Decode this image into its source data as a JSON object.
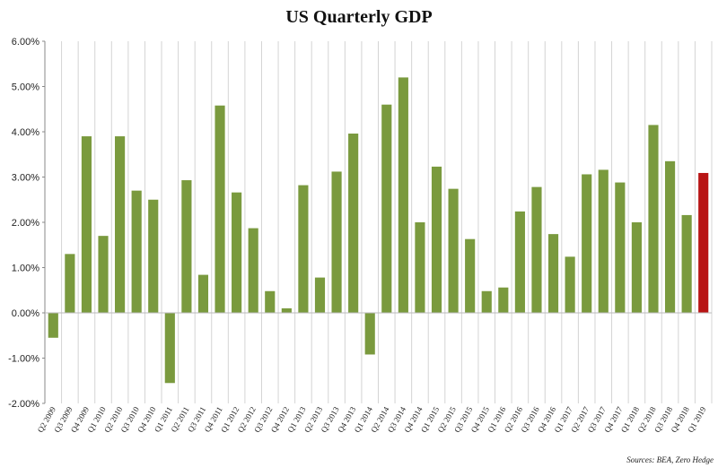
{
  "chart_data": {
    "type": "bar",
    "title": "US Quarterly GDP",
    "source": "Sources: BEA, Zero Hedge",
    "ylim": [
      -2,
      6
    ],
    "yticks": [
      -2,
      -1,
      0,
      1,
      2,
      3,
      4,
      5,
      6
    ],
    "ytick_labels": [
      "-2.00%",
      "-1.00%",
      "0.00%",
      "1.00%",
      "2.00%",
      "3.00%",
      "4.00%",
      "5.00%",
      "6.00%"
    ],
    "grid": "vertical",
    "categories": [
      "Q2 2009",
      "Q3 2009",
      "Q4 2009",
      "Q1 2010",
      "Q2 2010",
      "Q3 2010",
      "Q4 2010",
      "Q1 2011",
      "Q2 2011",
      "Q3 2011",
      "Q4 2011",
      "Q1 2012",
      "Q2 2012",
      "Q3 2012",
      "Q4 2012",
      "Q1 2013",
      "Q2 2013",
      "Q3 2013",
      "Q4 2013",
      "Q1 2014",
      "Q2 2014",
      "Q3 2014",
      "Q4 2014",
      "Q1 2015",
      "Q2 2015",
      "Q3 2015",
      "Q4 2015",
      "Q1 2016",
      "Q2 2016",
      "Q3 2016",
      "Q4 2016",
      "Q1 2017",
      "Q2 2017",
      "Q3 2017",
      "Q4 2017",
      "Q1 2018",
      "Q2 2018",
      "Q3 2018",
      "Q4 2018",
      "Q1 2019"
    ],
    "values": [
      -0.55,
      1.3,
      3.9,
      1.7,
      3.9,
      2.7,
      2.5,
      -1.55,
      2.93,
      0.84,
      4.58,
      2.66,
      1.87,
      0.48,
      0.1,
      2.82,
      0.78,
      3.12,
      3.96,
      -0.92,
      4.6,
      5.2,
      2.0,
      3.23,
      2.74,
      1.63,
      0.48,
      0.56,
      2.24,
      2.78,
      1.74,
      1.24,
      3.06,
      3.16,
      2.88,
      2.0,
      4.15,
      3.35,
      2.16,
      3.09
    ],
    "colors": {
      "default": "#7a9a3e",
      "highlight": "#b81414",
      "grid": "#d4d4d4",
      "axis": "#888888"
    },
    "highlight_index": 39
  }
}
